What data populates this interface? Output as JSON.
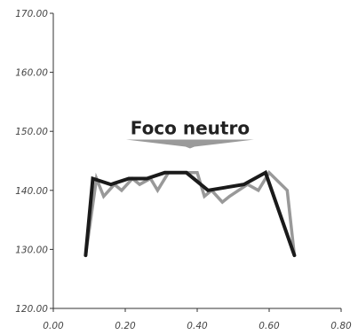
{
  "chart_data": {
    "type": "line",
    "title": "",
    "xlabel": "",
    "ylabel": "",
    "xlim": [
      0,
      0.8
    ],
    "ylim": [
      120,
      170
    ],
    "x_ticks": [
      "0.00",
      "0.20",
      "0.40",
      "0.60",
      "0.80"
    ],
    "y_ticks": [
      "120.00",
      "130.00",
      "140.00",
      "150.00",
      "160.00",
      "170.00"
    ],
    "grid": false,
    "annotation": {
      "text": "Foco neutro",
      "x": 0.38,
      "y": 148.6
    },
    "series": [
      {
        "color": "#999999",
        "points": [
          [
            0.09,
            129
          ],
          [
            0.12,
            142
          ],
          [
            0.14,
            139
          ],
          [
            0.17,
            141
          ],
          [
            0.19,
            140
          ],
          [
            0.22,
            142
          ],
          [
            0.24,
            141
          ],
          [
            0.27,
            142
          ],
          [
            0.29,
            140
          ],
          [
            0.32,
            143
          ],
          [
            0.4,
            143
          ],
          [
            0.42,
            139
          ],
          [
            0.44,
            140
          ],
          [
            0.47,
            138
          ],
          [
            0.49,
            139
          ],
          [
            0.54,
            141
          ],
          [
            0.57,
            140
          ],
          [
            0.6,
            143
          ],
          [
            0.65,
            140
          ],
          [
            0.67,
            129
          ]
        ]
      },
      {
        "color": "#1a1a1a",
        "points": [
          [
            0.09,
            129
          ],
          [
            0.11,
            142
          ],
          [
            0.16,
            141
          ],
          [
            0.21,
            142
          ],
          [
            0.26,
            142
          ],
          [
            0.31,
            143
          ],
          [
            0.37,
            143
          ],
          [
            0.43,
            140
          ],
          [
            0.53,
            141
          ],
          [
            0.59,
            143
          ],
          [
            0.67,
            129
          ]
        ]
      }
    ]
  }
}
